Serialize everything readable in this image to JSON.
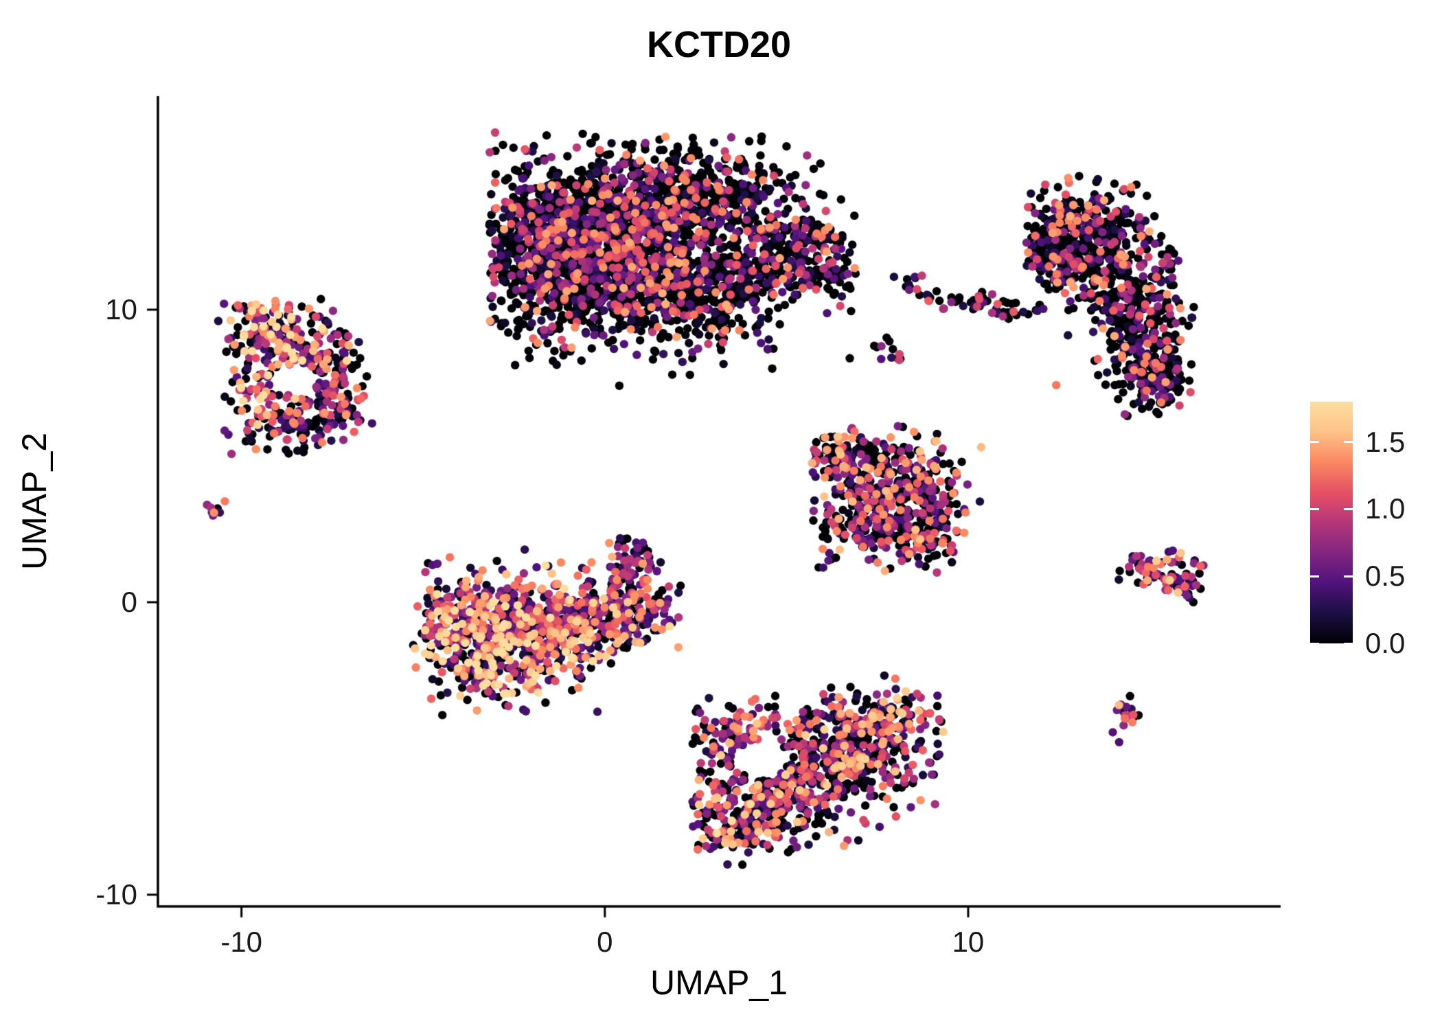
{
  "chart_data": {
    "type": "scatter",
    "title": "KCTD20",
    "xlabel": "UMAP_1",
    "ylabel": "UMAP_2",
    "xlim": [
      -12.3,
      18.6
    ],
    "ylim": [
      -10.4,
      17.3
    ],
    "xticks": [
      -10,
      0,
      10
    ],
    "yticks": [
      10,
      0,
      -10
    ],
    "grid": false,
    "legend_position": "right",
    "point_radius": 6.2,
    "colorbar": {
      "ticks": [
        "1.5",
        "1.0",
        "0.5",
        "0.0"
      ],
      "tick_values": [
        1.5,
        1.0,
        0.5,
        0.0
      ],
      "range": [
        0,
        1.8
      ],
      "palette": "magma",
      "stops": [
        "#000004",
        "#1c1044",
        "#51127c",
        "#822681",
        "#b63679",
        "#e65164",
        "#fb8861",
        "#fec287",
        "#fddea0"
      ]
    },
    "clusters": [
      {
        "name": "top-center-main",
        "seed": 11,
        "zero_frac": 0.52,
        "expr_max": 1.5,
        "expr_pow": 1.8,
        "bounds": [
          -3.2,
          6.9,
          7.3,
          16.1
        ],
        "hole": null,
        "blobs": [
          [
            0.6,
            12.4,
            2.0,
            1.5,
            1250
          ],
          [
            -1.0,
            10.9,
            1.2,
            1.1,
            420
          ],
          [
            2.3,
            13.9,
            1.4,
            0.8,
            330
          ],
          [
            2.4,
            10.4,
            1.3,
            0.9,
            320
          ],
          [
            5.2,
            11.3,
            1.0,
            0.4,
            170
          ],
          [
            5.3,
            12.5,
            0.9,
            0.35,
            120
          ],
          [
            -1.6,
            13.3,
            0.8,
            0.8,
            200
          ]
        ]
      },
      {
        "name": "left-ring",
        "seed": 22,
        "zero_frac": 0.28,
        "expr_max": 1.8,
        "expr_pow": 1.15,
        "bounds": [
          -10.8,
          -6.3,
          5.0,
          10.4
        ],
        "hole": [
          -8.5,
          7.6,
          0.6,
          0.55
        ],
        "blobs": [
          [
            -9.2,
            9.1,
            0.75,
            0.7,
            150,
            1.35
          ],
          [
            -7.8,
            8.4,
            0.6,
            0.7,
            80,
            0.85
          ],
          [
            -7.5,
            6.9,
            0.55,
            0.7,
            80,
            0.8
          ],
          [
            -8.7,
            6.1,
            0.8,
            0.55,
            90,
            0.8
          ],
          [
            -9.6,
            7.6,
            0.5,
            0.8,
            60,
            1.1
          ]
        ]
      },
      {
        "name": "left-micro-dot",
        "seed": 33,
        "zero_frac": 0.15,
        "expr_max": 1.4,
        "expr_pow": 1.0,
        "bounds": null,
        "hole": null,
        "blobs": [
          [
            -10.65,
            3.15,
            0.13,
            0.12,
            8
          ]
        ]
      },
      {
        "name": "center-left-bright",
        "seed": 44,
        "zero_frac": 0.22,
        "expr_max": 1.8,
        "expr_pow": 1.1,
        "bounds": [
          -5.3,
          2.4,
          -3.9,
          2.2
        ],
        "hole": null,
        "blobs": [
          [
            -2.9,
            -1.5,
            1.2,
            1.0,
            500,
            1.1
          ],
          [
            -1.2,
            -0.7,
            1.1,
            0.8,
            280
          ],
          [
            -4.1,
            -0.3,
            0.6,
            0.8,
            110,
            0.85
          ],
          [
            0.4,
            -0.5,
            0.9,
            0.6,
            130,
            0.9
          ],
          [
            0.8,
            1.1,
            0.4,
            0.8,
            80,
            0.8
          ]
        ]
      },
      {
        "name": "middle-triangle",
        "seed": 55,
        "zero_frac": 0.38,
        "expr_max": 1.6,
        "expr_pow": 1.4,
        "bounds": [
          5.7,
          10.4,
          0.7,
          6.3
        ],
        "hole": null,
        "blobs": [
          [
            7.9,
            4.1,
            1.2,
            0.85,
            300
          ],
          [
            7.6,
            2.7,
            0.9,
            0.7,
            180
          ],
          [
            8.9,
            2.3,
            0.5,
            0.5,
            70
          ],
          [
            6.5,
            5.1,
            0.5,
            0.45,
            70
          ]
        ]
      },
      {
        "name": "bottom-center",
        "seed": 66,
        "zero_frac": 0.3,
        "expr_max": 1.7,
        "expr_pow": 1.25,
        "bounds": [
          2.4,
          9.4,
          -9.1,
          -2.5
        ],
        "hole": [
          4.3,
          -5.4,
          0.75,
          0.65
        ],
        "blobs": [
          [
            6.6,
            -5.1,
            1.3,
            1.0,
            400
          ],
          [
            4.7,
            -6.6,
            1.1,
            0.9,
            250
          ],
          [
            3.7,
            -7.7,
            0.7,
            0.6,
            110,
            1.1
          ],
          [
            7.8,
            -4.1,
            0.8,
            0.6,
            110
          ],
          [
            3.4,
            -4.5,
            0.6,
            0.55,
            80,
            0.9
          ]
        ]
      },
      {
        "name": "right-crescent",
        "seed": 77,
        "zero_frac": 0.5,
        "expr_max": 1.5,
        "expr_pow": 1.6,
        "bounds": [
          11.6,
          16.3,
          6.3,
          14.7
        ],
        "hole": null,
        "blobs": [
          [
            13.1,
            12.7,
            1.0,
            0.8,
            260
          ],
          [
            14.2,
            11.2,
            0.8,
            0.9,
            200
          ],
          [
            14.7,
            9.2,
            0.7,
            1.0,
            190
          ],
          [
            15.1,
            7.7,
            0.6,
            0.7,
            130
          ],
          [
            12.5,
            11.7,
            0.5,
            0.6,
            90
          ]
        ]
      },
      {
        "name": "micro-pair",
        "seed": 88,
        "zero_frac": 0.45,
        "expr_max": 1.2,
        "expr_pow": 1.3,
        "bounds": null,
        "hole": null,
        "blobs": [
          [
            8.4,
            10.9,
            0.22,
            0.18,
            10
          ],
          [
            8.8,
            10.5,
            0.15,
            0.12,
            6
          ]
        ]
      },
      {
        "name": "micro-streak",
        "seed": 99,
        "zero_frac": 0.45,
        "expr_max": 1.2,
        "expr_pow": 1.4,
        "bounds": null,
        "hole": null,
        "blobs": [
          [
            10.2,
            10.3,
            0.45,
            0.18,
            26
          ],
          [
            11.2,
            9.9,
            0.5,
            0.16,
            22
          ]
        ]
      },
      {
        "name": "micro-dots",
        "seed": 111,
        "zero_frac": 0.5,
        "expr_max": 1.2,
        "expr_pow": 1.2,
        "bounds": null,
        "hole": null,
        "blobs": [
          [
            7.4,
            8.7,
            0.3,
            0.18,
            9
          ],
          [
            8.1,
            8.4,
            0.12,
            0.1,
            4
          ]
        ]
      },
      {
        "name": "right-wedge",
        "seed": 122,
        "zero_frac": 0.3,
        "expr_max": 1.7,
        "expr_pow": 1.15,
        "bounds": [
          14.1,
          16.5,
          -0.3,
          2.1
        ],
        "hole": null,
        "blobs": [
          [
            15.1,
            1.2,
            0.6,
            0.35,
            60
          ],
          [
            15.9,
            0.6,
            0.35,
            0.3,
            30
          ]
        ]
      },
      {
        "name": "small-bottom-right",
        "seed": 133,
        "zero_frac": 0.25,
        "expr_max": 1.7,
        "expr_pow": 1.0,
        "bounds": null,
        "hole": null,
        "blobs": [
          [
            14.3,
            -3.9,
            0.28,
            0.3,
            20
          ]
        ]
      }
    ]
  }
}
